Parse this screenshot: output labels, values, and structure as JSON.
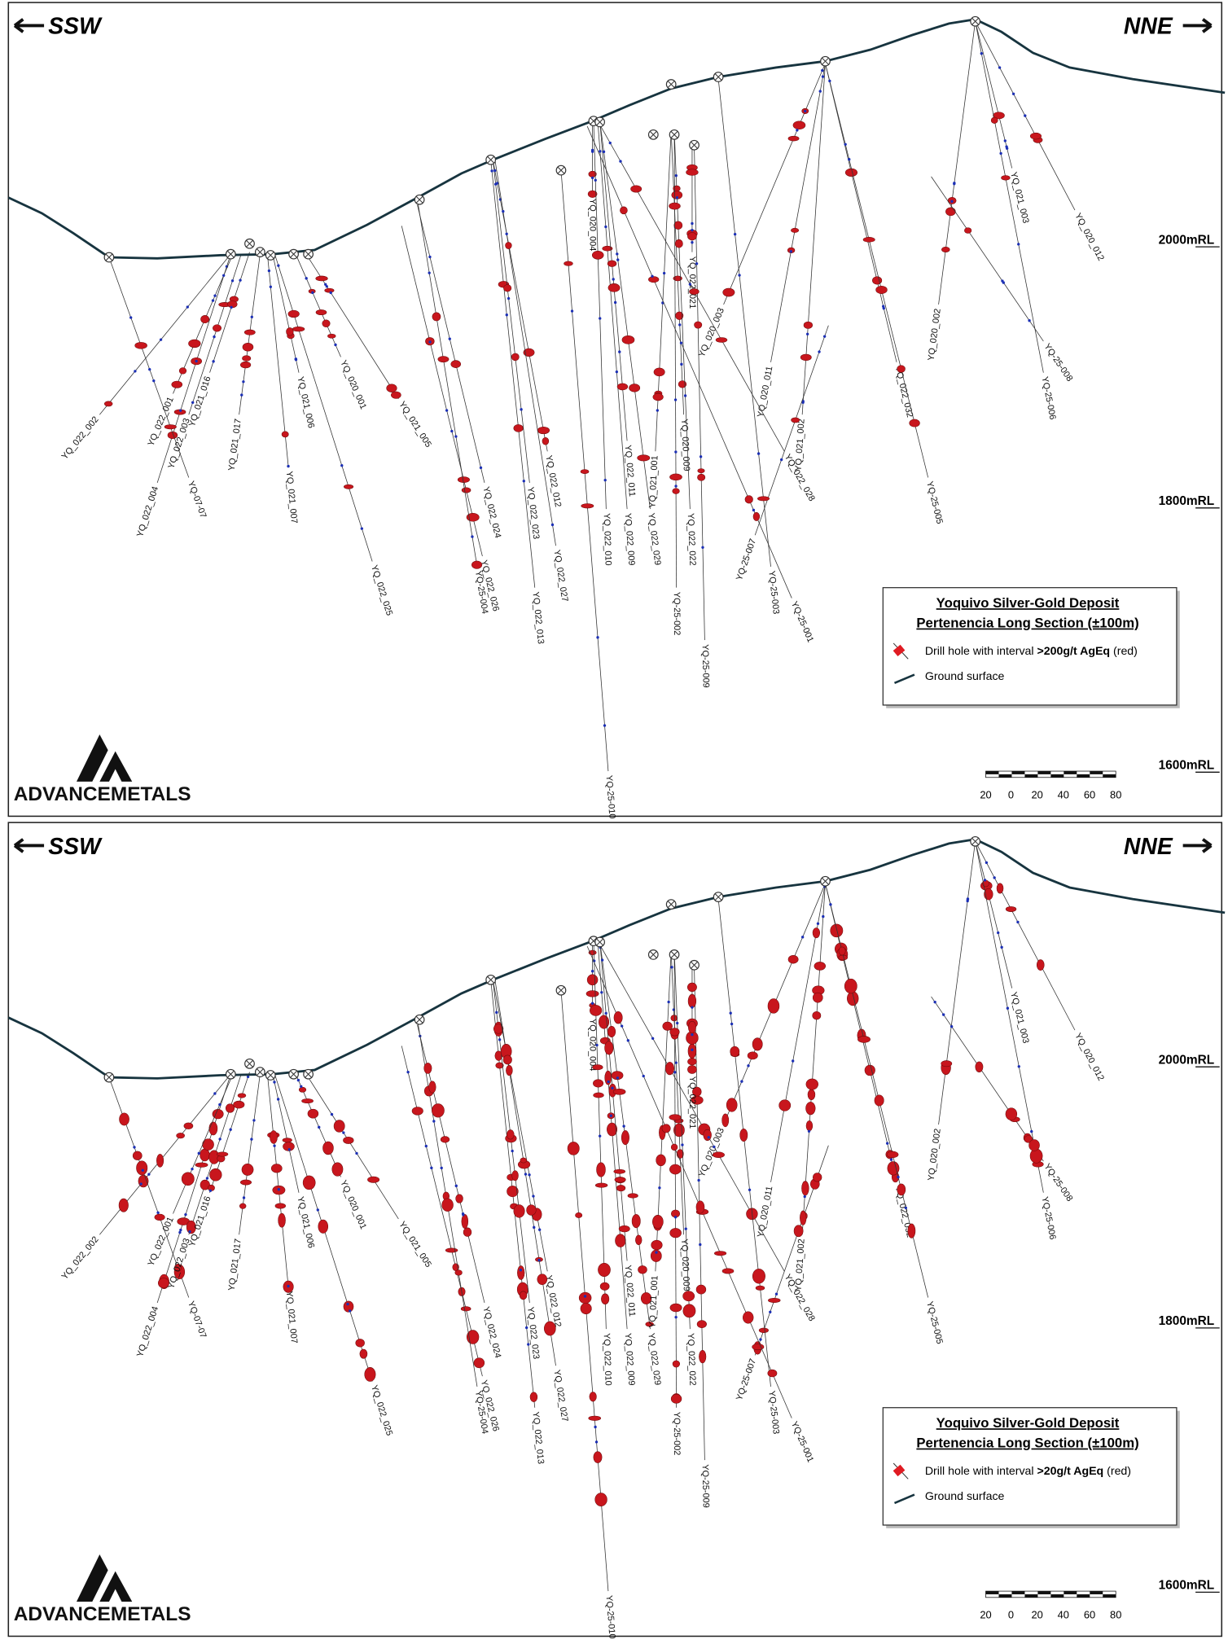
{
  "panels": [
    {
      "direction_left": "SSW",
      "direction_right": "NNE",
      "elevations": [
        "2000mRL",
        "1800mRL",
        "1600mRL"
      ],
      "holes": [
        "YQ_022_002",
        "YQ_022_004",
        "YQ_022_001",
        "YQ-07-07",
        "YQ_022_003",
        "YQ_021_016",
        "YQ_021_017",
        "YQ_021_007",
        "YQ_021_006",
        "YQ_020_001",
        "YQ_021_005",
        "YQ_022_025",
        "YQ_022_026",
        "YQ-25-004",
        "YQ_022_024",
        "YQ_022_013",
        "YQ_022_023",
        "YQ_022_012",
        "YQ_022_027",
        "YQ_020_004",
        "YQ_022_010",
        "YQ_022_009",
        "YQ-25-010",
        "YQ_022_011",
        "YQ_022_029",
        "YQ_021_001",
        "YQ_020_009",
        "YQ_022_022",
        "YQ-25-002",
        "YQ-25-009",
        "YQ_022_021",
        "YQ_020_003",
        "YQ_020_011",
        "YQ_021_002",
        "YQ_022_028",
        "YQ-25-007",
        "YQ-25-003",
        "YQ-25-001",
        "YQ_022_032",
        "YQ-25-005",
        "YQ_021_003",
        "YQ_020_012",
        "YQ_020_002",
        "YQ-25-008",
        "YQ-25-006"
      ],
      "legend": {
        "title": "Yoquivo Silver-Gold Deposit",
        "subtitle": "Pertenencia Long Section (±100m)",
        "drill_text": "Drill hole with interval ",
        "drill_grade": ">200g/t AgEq",
        "drill_suffix": " (red)",
        "ground": "Ground surface"
      },
      "scale_labels": [
        "20",
        "0",
        "20",
        "40",
        "60",
        "80"
      ],
      "logo": "ADVANCEMETALS"
    },
    {
      "direction_left": "SSW",
      "direction_right": "NNE",
      "elevations": [
        "2000mRL",
        "1800mRL",
        "1600mRL"
      ],
      "holes": [
        "YQ_022_002",
        "YQ_022_004",
        "YQ_022_001",
        "YQ-07-07",
        "YQ_022_003",
        "YQ_021_016",
        "YQ_021_017",
        "YQ_021_007",
        "YQ_021_006",
        "YQ_020_001",
        "YQ_021_005",
        "YQ_022_025",
        "YQ_022_026",
        "YQ-25-004",
        "YQ_022_024",
        "YQ_022_013",
        "YQ_022_023",
        "YQ_022_012",
        "YQ_022_027",
        "YQ_020_004",
        "YQ_022_010",
        "YQ_022_009",
        "YQ-25-010",
        "YQ_022_011",
        "YQ_022_029",
        "YQ_021_001",
        "YQ_020_009",
        "YQ_022_022",
        "YQ-25-002",
        "YQ-25-009",
        "YQ_022_021",
        "YQ_020_003",
        "YQ_020_011",
        "YQ_021_002",
        "YQ_022_028",
        "YQ-25-007",
        "YQ-25-003",
        "YQ-25-001",
        "YQ_022_032",
        "YQ-25-005",
        "YQ_021_003",
        "YQ_020_012",
        "YQ_020_002",
        "YQ-25-008",
        "YQ-25-006"
      ],
      "legend": {
        "title": "Yoquivo Silver-Gold Deposit",
        "subtitle": "Pertenencia Long Section (±100m)",
        "drill_text": "Drill hole with interval ",
        "drill_grade": ">20g/t AgEq",
        "drill_suffix": " (red)",
        "ground": "Ground surface"
      },
      "scale_labels": [
        "20",
        "0",
        "20",
        "40",
        "60",
        "80"
      ],
      "logo": "ADVANCEMETALS"
    }
  ]
}
